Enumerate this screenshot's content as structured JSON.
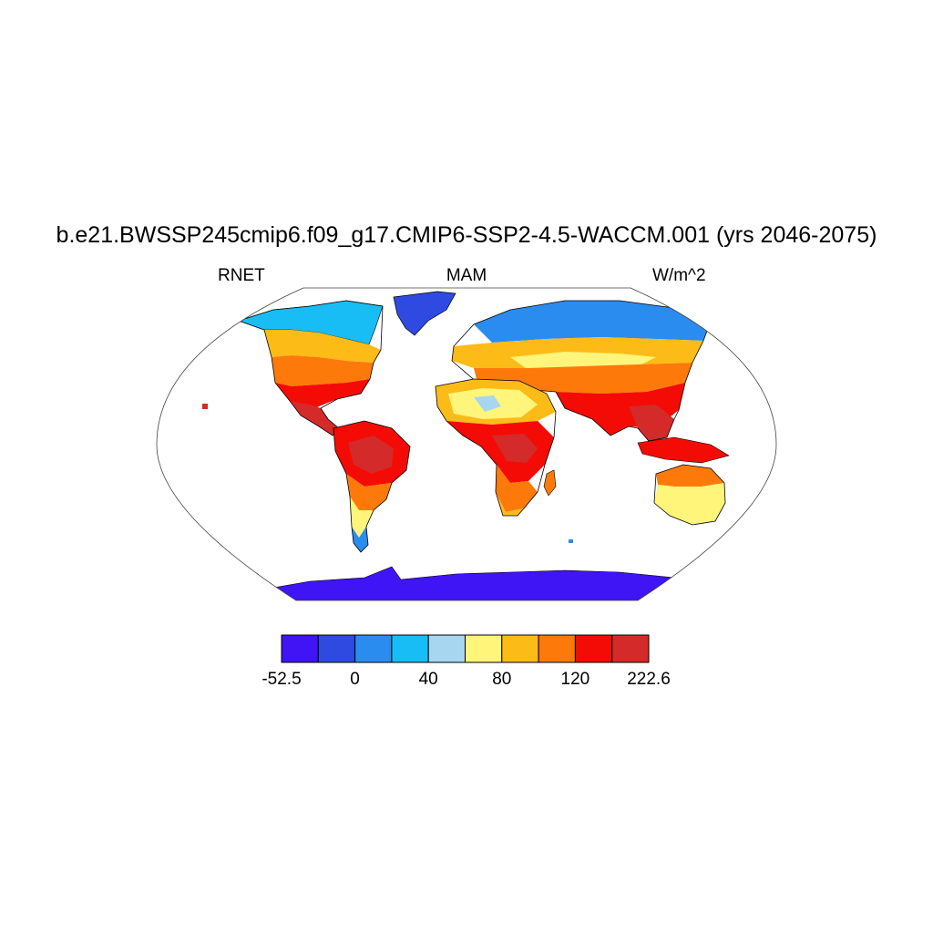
{
  "title": "b.e21.BWSSP245cmip6.f09_g17.CMIP6-SSP2-4.5-WACCM.001 (yrs 2046-2075)",
  "subtitle_left": "RNET",
  "subtitle_center": "MAM",
  "subtitle_right": "W/m^2",
  "colorbar": {
    "colors": [
      "#3f14f5",
      "#2f4ae0",
      "#2b8cf0",
      "#18bdf5",
      "#a7d6f0",
      "#fff57a",
      "#fdbb18",
      "#fd7a0a",
      "#f50b05",
      "#d42a2a"
    ],
    "labels": [
      "-52.5",
      "0",
      "40",
      "80",
      "120",
      "222.6"
    ]
  },
  "map": {
    "projection": "Robinson",
    "ocean_color": "#ffffff",
    "coastline_color": "#000000"
  }
}
